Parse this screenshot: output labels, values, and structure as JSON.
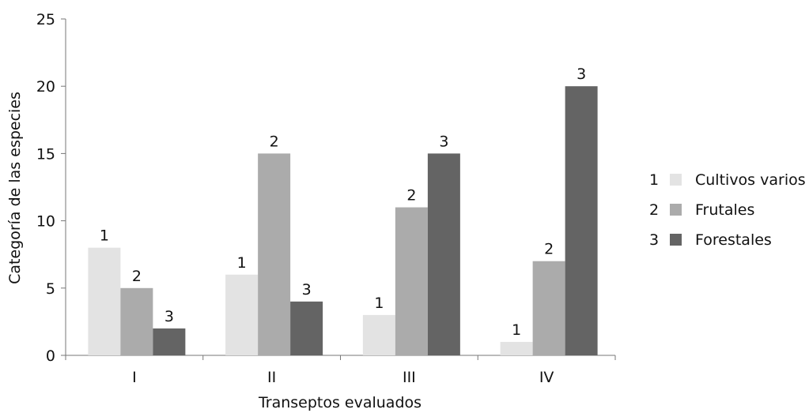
{
  "chart_data": {
    "type": "bar",
    "xlabel": "Transeptos evaluados",
    "ylabel": "Categoría de las especies",
    "ylim": [
      0,
      25
    ],
    "yticks": [
      0,
      5,
      10,
      15,
      20,
      25
    ],
    "grid": false,
    "legend_position": "right",
    "categories": [
      "I",
      "II",
      "III",
      "IV"
    ],
    "series": [
      {
        "key": "1",
        "name": "Cultivos varios",
        "color": "#e3e3e3",
        "values": [
          8,
          6,
          3,
          1
        ]
      },
      {
        "key": "2",
        "name": "Frutales",
        "color": "#ababab",
        "values": [
          5,
          15,
          11,
          7
        ]
      },
      {
        "key": "3",
        "name": "Forestales",
        "color": "#646464",
        "values": [
          2,
          4,
          15,
          20
        ]
      }
    ]
  }
}
